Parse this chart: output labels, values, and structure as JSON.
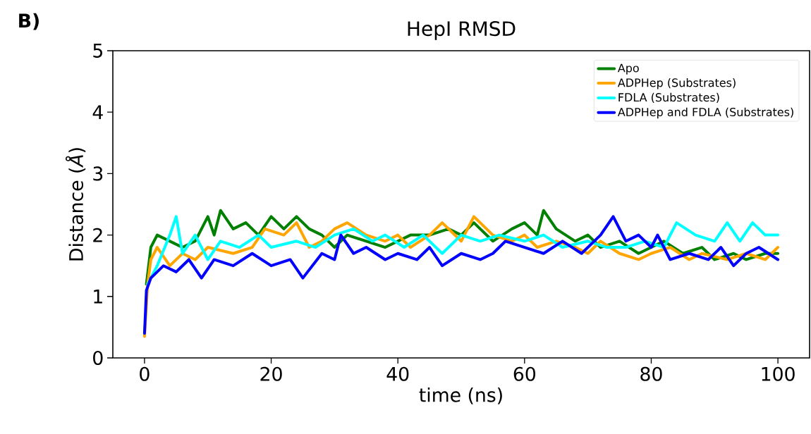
{
  "chart_data": {
    "type": "line",
    "title": "HepI RMSD",
    "xlabel": "time (ns)",
    "ylabel": "Distance (*Å*)",
    "annotations": [
      "B)"
    ],
    "xlim": [
      -5,
      105
    ],
    "ylim": [
      0,
      5
    ],
    "xticks": [
      0,
      20,
      40,
      60,
      80,
      100
    ],
    "yticks": [
      0,
      1,
      2,
      3,
      4,
      5
    ],
    "legend": "top right",
    "series": [
      {
        "name": "Apo",
        "color": "#008000",
        "x": [
          0.3,
          1,
          2,
          4,
          6,
          8,
          10,
          11,
          12,
          14,
          16,
          18,
          20,
          22,
          24,
          26,
          28,
          30,
          32,
          35,
          38,
          40,
          42,
          45,
          48,
          50,
          52,
          55,
          58,
          60,
          62,
          63,
          65,
          68,
          70,
          72,
          75,
          78,
          80,
          82,
          85,
          88,
          90,
          93,
          95,
          98,
          100
        ],
        "values": [
          1.2,
          1.8,
          2.0,
          1.9,
          1.8,
          1.9,
          2.3,
          2.0,
          2.4,
          2.1,
          2.2,
          2.0,
          2.3,
          2.1,
          2.3,
          2.1,
          2.0,
          1.8,
          2.0,
          1.9,
          1.8,
          1.9,
          2.0,
          2.0,
          2.1,
          2.0,
          2.2,
          1.9,
          2.1,
          2.2,
          2.0,
          2.4,
          2.1,
          1.9,
          2.0,
          1.8,
          1.9,
          1.7,
          1.8,
          1.9,
          1.7,
          1.8,
          1.6,
          1.7,
          1.6,
          1.7,
          1.7
        ]
      },
      {
        "name": "ADPHep (Substrates)",
        "color": "#ffa500",
        "x": [
          0,
          0.5,
          1,
          2,
          4,
          6,
          8,
          10,
          14,
          17,
          19,
          22,
          24,
          26,
          28,
          30,
          32,
          35,
          38,
          40,
          42,
          45,
          47,
          50,
          52,
          55,
          58,
          60,
          62,
          65,
          68,
          70,
          72,
          75,
          78,
          80,
          83,
          86,
          88,
          92,
          95,
          98,
          100
        ],
        "values": [
          0.35,
          1.2,
          1.6,
          1.8,
          1.5,
          1.7,
          1.6,
          1.8,
          1.7,
          1.8,
          2.1,
          2.0,
          2.2,
          1.8,
          1.9,
          2.1,
          2.2,
          2.0,
          1.9,
          2.0,
          1.8,
          2.0,
          2.2,
          1.9,
          2.3,
          2.0,
          1.9,
          2.0,
          1.8,
          1.9,
          1.8,
          1.7,
          1.9,
          1.7,
          1.6,
          1.7,
          1.8,
          1.6,
          1.7,
          1.6,
          1.7,
          1.6,
          1.8
        ]
      },
      {
        "name": "FDLA (Substrates)",
        "color": "#00ffff",
        "x": [
          0.5,
          2,
          4,
          5,
          6,
          8,
          10,
          12,
          15,
          18,
          20,
          24,
          27,
          30,
          33,
          36,
          38,
          41,
          44,
          47,
          50,
          53,
          56,
          60,
          63,
          66,
          70,
          73,
          76,
          79,
          82,
          84,
          87,
          90,
          92,
          94,
          96,
          98,
          100
        ],
        "values": [
          1.2,
          1.5,
          2.0,
          2.3,
          1.7,
          2.0,
          1.6,
          1.9,
          1.8,
          2.0,
          1.8,
          1.9,
          1.8,
          2.0,
          2.1,
          1.9,
          2.0,
          1.8,
          2.0,
          1.7,
          2.0,
          1.9,
          2.0,
          1.9,
          2.0,
          1.8,
          1.9,
          1.8,
          1.8,
          1.9,
          1.8,
          2.2,
          2.0,
          1.9,
          2.2,
          1.9,
          2.2,
          2.0,
          2.0
        ]
      },
      {
        "name": "ADPHep and FDLA (Substrates)",
        "color": "#0000ff",
        "x": [
          0,
          0.3,
          1,
          3,
          5,
          7,
          9,
          11,
          14,
          17,
          20,
          23,
          25,
          28,
          30,
          31,
          33,
          35,
          38,
          40,
          43,
          45,
          47,
          50,
          53,
          55,
          57,
          60,
          63,
          66,
          69,
          72,
          74,
          76,
          78,
          80,
          81,
          83,
          86,
          89,
          91,
          93,
          95,
          97,
          100
        ],
        "values": [
          0.4,
          1.1,
          1.3,
          1.5,
          1.4,
          1.6,
          1.3,
          1.6,
          1.5,
          1.7,
          1.5,
          1.6,
          1.3,
          1.7,
          1.6,
          2.0,
          1.7,
          1.8,
          1.6,
          1.7,
          1.6,
          1.8,
          1.5,
          1.7,
          1.6,
          1.7,
          1.9,
          1.8,
          1.7,
          1.9,
          1.7,
          2.0,
          2.3,
          1.9,
          2.0,
          1.8,
          2.0,
          1.6,
          1.7,
          1.6,
          1.8,
          1.5,
          1.7,
          1.8,
          1.6
        ]
      }
    ]
  }
}
